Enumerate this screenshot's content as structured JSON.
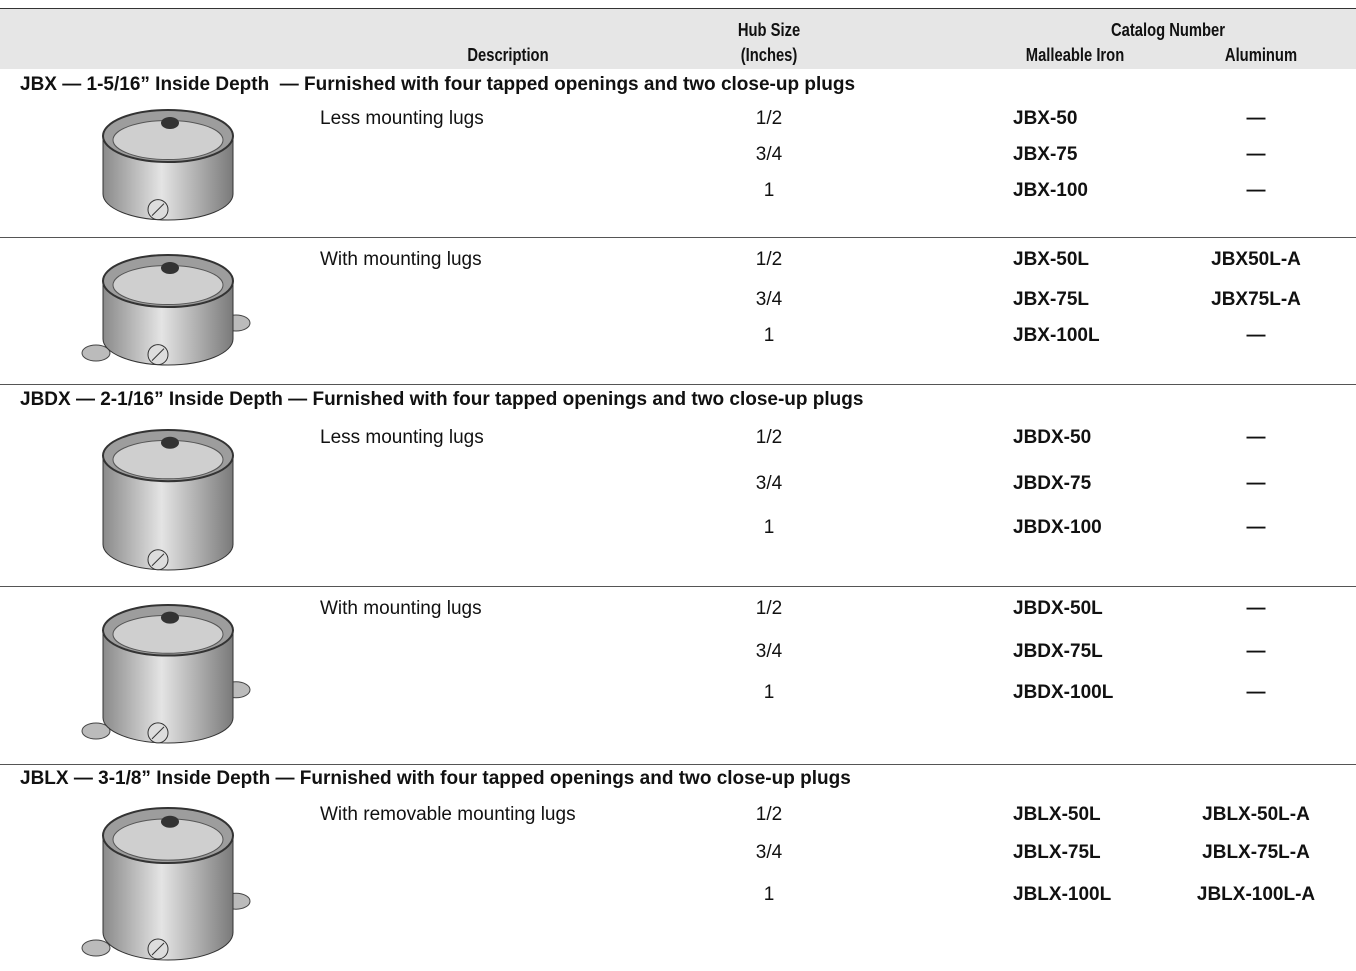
{
  "header": {
    "description": "Description",
    "hub_size": [
      "Hub Size",
      "(Inches)"
    ],
    "catalog_number": "Catalog Number",
    "malleable_iron": "Malleable Iron",
    "aluminum": "Aluminum"
  },
  "sections": [
    {
      "heading": "JBX — 1-5/16” Inside Depth  — Furnished with four tapped openings and two close-up plugs",
      "groups": [
        {
          "description": "Less mounting lugs",
          "rows": [
            [
              "1/2",
              "JBX-50",
              "—"
            ],
            [
              "3/4",
              "JBX-75",
              "—"
            ],
            [
              "1",
              "JBX-100",
              "—"
            ]
          ]
        },
        {
          "description": "With mounting lugs",
          "rows": [
            [
              "1/2",
              "JBX-50L",
              "JBX50L-A"
            ],
            [
              "3/4",
              "JBX-75L",
              "JBX75L-A"
            ],
            [
              "1",
              "JBX-100L",
              "—"
            ]
          ]
        }
      ]
    },
    {
      "heading": "JBDX — 2-1/16” Inside Depth — Furnished with four tapped openings and two close-up plugs",
      "groups": [
        {
          "description": "Less mounting lugs",
          "rows": [
            [
              "1/2",
              "JBDX-50",
              "—"
            ],
            [
              "3/4",
              "JBDX-75",
              "—"
            ],
            [
              "1",
              "JBDX-100",
              "—"
            ]
          ]
        },
        {
          "description": "With mounting lugs",
          "rows": [
            [
              "1/2",
              "JBDX-50L",
              "—"
            ],
            [
              "3/4",
              "JBDX-75L",
              "—"
            ],
            [
              "1",
              "JBDX-100L",
              "—"
            ]
          ]
        }
      ]
    },
    {
      "heading": "JBLX — 3-1/8” Inside Depth — Furnished with four tapped openings and two close-up plugs",
      "groups": [
        {
          "description": "With removable mounting lugs",
          "rows": [
            [
              "1/2",
              "JBLX-50L",
              "JBLX-50L-A"
            ],
            [
              "3/4",
              "JBLX-75L",
              "JBLX-75L-A"
            ],
            [
              "1",
              "JBLX-100L",
              "JBLX-100L-A"
            ]
          ]
        }
      ]
    }
  ]
}
